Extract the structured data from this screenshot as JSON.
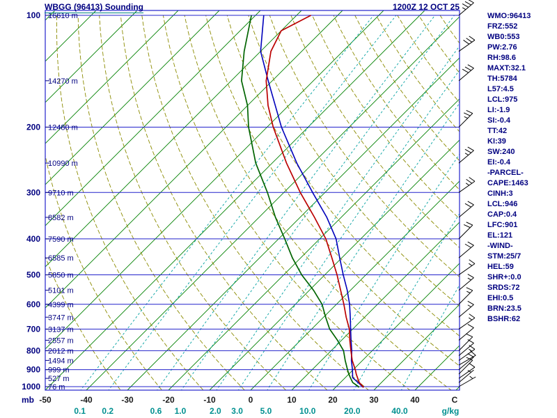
{
  "header": {
    "title": "WBGG (96413) Sounding",
    "datetime": "1200Z 12 OCT 25"
  },
  "axes": {
    "pressure_unit": "mb",
    "temp_unit": "C",
    "mixing_unit": "g/kg",
    "pressure_ticks": [
      100,
      200,
      300,
      400,
      500,
      600,
      700,
      800,
      900,
      1000
    ],
    "temp_ticks": [
      -50,
      -40,
      -30,
      -20,
      -10,
      0,
      10,
      20,
      30,
      40
    ],
    "mixing_ticks": [
      "0.1",
      "0.2",
      "0.6",
      "1.0",
      "2.0",
      "3.0",
      "5.0",
      "10.0",
      "20.0",
      "40.0"
    ]
  },
  "height_labels": [
    {
      "p": 100,
      "text": "16610 m"
    },
    {
      "p": 150,
      "text": "14270 m"
    },
    {
      "p": 200,
      "text": "12480 m"
    },
    {
      "p": 250,
      "text": "10990 m"
    },
    {
      "p": 300,
      "text": "9710 m"
    },
    {
      "p": 350,
      "text": "8582 m"
    },
    {
      "p": 400,
      "text": "7590 m"
    },
    {
      "p": 450,
      "text": "6585 m"
    },
    {
      "p": 500,
      "text": "5850 m"
    },
    {
      "p": 550,
      "text": "5101 m"
    },
    {
      "p": 600,
      "text": "4399 m"
    },
    {
      "p": 650,
      "text": "3747 m"
    },
    {
      "p": 700,
      "text": "3137 m"
    },
    {
      "p": 750,
      "text": "2557 m"
    },
    {
      "p": 800,
      "text": "2012 m"
    },
    {
      "p": 850,
      "text": "1494 m"
    },
    {
      "p": 900,
      "text": "999 m"
    },
    {
      "p": 950,
      "text": "527 m"
    },
    {
      "p": 1000,
      "text": "76 m"
    }
  ],
  "indices": [
    "WMO:96413",
    "FRZ:552",
    "WB0:553",
    "PW:2.76",
    "RH:98.6",
    "MAXT:32.1",
    "TH:5784",
    "L57:4.5",
    "LCL:975",
    "LI:-1.9",
    "SI:-0.4",
    "TT:42",
    "KI:39",
    "SW:240",
    "EI:-0.4",
    "-PARCEL-",
    "CAPE:1463",
    "CINH:3",
    "LCL:946",
    "CAP:0.4",
    "LFC:901",
    "EL:121",
    "-WIND-",
    "STM:25/7",
    "HEL:59",
    "SHR+:0.0",
    "SRDS:72",
    "EHI:0.5",
    "BRN:23.5",
    "BSHR:62"
  ],
  "colors": {
    "accent_navy": "#000080",
    "grid_blue": "#2222cc",
    "isotherm_green": "#008000",
    "adiabat_olive": "#8b8b00",
    "mixing_teal": "#00a0a0",
    "mixing_label_teal": "#009090",
    "temp_trace_red": "#bb0000",
    "dewpoint_trace_green": "#006400",
    "parcel_trace_blue": "#0000bb",
    "barb_black": "#000000",
    "temp_label_dark": "#1a1a1a",
    "title_underline_teal": "#008080"
  },
  "chart_data": {
    "type": "skewt-log-p",
    "station": "WBGG (96413)",
    "valid": "1200Z 12 OCT 25",
    "pressure_axis_range_mb": [
      100,
      1050
    ],
    "temp_axis_range_c": [
      -50,
      50
    ],
    "skew_deg": 45,
    "grid": true,
    "isotherms": {
      "min": -140,
      "max": 50,
      "step": 10
    },
    "dry_adiabats_theta_k": {
      "min": 240,
      "max": 440,
      "step": 10
    },
    "mixing_ratio_lines_gkg": [
      0.1,
      0.2,
      0.6,
      1.0,
      2.0,
      3.0,
      5.0,
      10.0,
      20.0,
      40.0
    ],
    "temperature_profile": [
      [
        1005,
        26.8
      ],
      [
        1000,
        26.5
      ],
      [
        975,
        24.6
      ],
      [
        950,
        23.2
      ],
      [
        925,
        21.8
      ],
      [
        900,
        20.5
      ],
      [
        850,
        17.5
      ],
      [
        800,
        14.8
      ],
      [
        750,
        12.0
      ],
      [
        700,
        9.2
      ],
      [
        650,
        5.5
      ],
      [
        600,
        1.8
      ],
      [
        550,
        -2.4
      ],
      [
        500,
        -7.0
      ],
      [
        450,
        -12.4
      ],
      [
        400,
        -18.5
      ],
      [
        350,
        -26.5
      ],
      [
        300,
        -36.0
      ],
      [
        250,
        -46.5
      ],
      [
        200,
        -58.5
      ],
      [
        175,
        -65.0
      ],
      [
        150,
        -71.5
      ],
      [
        125,
        -77.5
      ],
      [
        110,
        -80.0
      ],
      [
        100,
        -76.5
      ]
    ],
    "dewpoint_profile": [
      [
        1005,
        25.6
      ],
      [
        1000,
        25.4
      ],
      [
        975,
        23.0
      ],
      [
        950,
        21.5
      ],
      [
        925,
        20.0
      ],
      [
        900,
        18.6
      ],
      [
        850,
        15.8
      ],
      [
        800,
        13.0
      ],
      [
        750,
        9.0
      ],
      [
        700,
        4.4
      ],
      [
        650,
        0.5
      ],
      [
        600,
        -3.5
      ],
      [
        550,
        -9.0
      ],
      [
        500,
        -15.6
      ],
      [
        450,
        -22.0
      ],
      [
        400,
        -28.5
      ],
      [
        350,
        -36.0
      ],
      [
        300,
        -44.0
      ],
      [
        250,
        -54.0
      ],
      [
        200,
        -64.5
      ],
      [
        175,
        -70.0
      ],
      [
        150,
        -77.5
      ],
      [
        125,
        -84.0
      ],
      [
        100,
        -91.0
      ]
    ],
    "parcel_profile": [
      [
        1005,
        26.8
      ],
      [
        946,
        21.8
      ],
      [
        900,
        19.8
      ],
      [
        850,
        17.3
      ],
      [
        800,
        15.0
      ],
      [
        750,
        12.3
      ],
      [
        700,
        9.5
      ],
      [
        650,
        6.5
      ],
      [
        600,
        3.2
      ],
      [
        550,
        -0.8
      ],
      [
        500,
        -5.5
      ],
      [
        450,
        -10.5
      ],
      [
        400,
        -16.0
      ],
      [
        350,
        -23.5
      ],
      [
        300,
        -33.0
      ],
      [
        250,
        -44.0
      ],
      [
        200,
        -56.5
      ],
      [
        150,
        -71.0
      ],
      [
        125,
        -80.0
      ],
      [
        100,
        -88.0
      ]
    ],
    "winds_p_dir_spd": [
      [
        1000,
        60,
        5
      ],
      [
        975,
        50,
        5
      ],
      [
        950,
        55,
        10
      ],
      [
        925,
        45,
        10
      ],
      [
        900,
        50,
        10
      ],
      [
        875,
        60,
        10
      ],
      [
        850,
        55,
        15
      ],
      [
        825,
        50,
        10
      ],
      [
        800,
        45,
        10
      ],
      [
        750,
        50,
        10
      ],
      [
        700,
        55,
        15
      ],
      [
        650,
        50,
        15
      ],
      [
        600,
        45,
        15
      ],
      [
        550,
        50,
        15
      ],
      [
        500,
        55,
        15
      ],
      [
        450,
        50,
        20
      ],
      [
        400,
        45,
        20
      ],
      [
        350,
        50,
        20
      ],
      [
        300,
        55,
        25
      ],
      [
        250,
        50,
        25
      ],
      [
        200,
        45,
        25
      ],
      [
        150,
        50,
        30
      ],
      [
        125,
        55,
        30
      ],
      [
        100,
        50,
        35
      ]
    ]
  }
}
